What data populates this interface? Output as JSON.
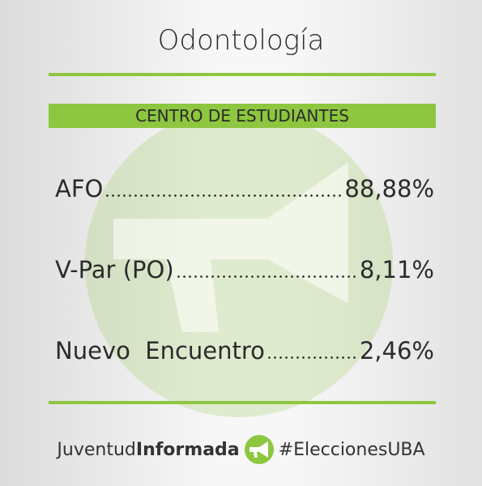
{
  "header": {
    "title": "Odontología"
  },
  "section": {
    "title": "CENTRO DE ESTUDIANTES"
  },
  "results": [
    {
      "name": "AFO",
      "value": "88,88%"
    },
    {
      "name": "V-Par (PO)",
      "value": "8,11%"
    },
    {
      "name": "Nuevo  Encuentro",
      "value": "2,46%"
    }
  ],
  "footer": {
    "brand_light": "Juventud",
    "brand_bold": "Informada",
    "hashtag": "#EleccionesUBA"
  }
}
